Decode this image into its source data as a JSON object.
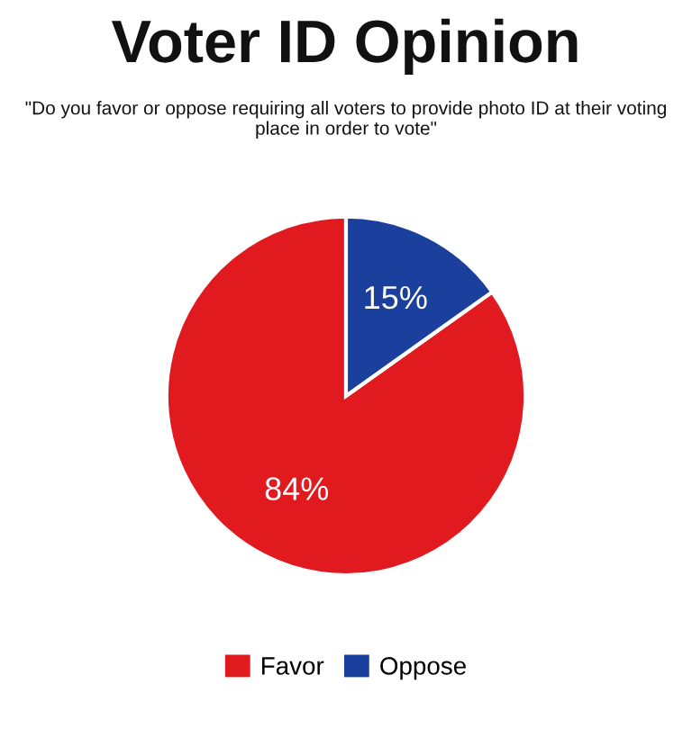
{
  "chart_data": {
    "type": "pie",
    "title": "Voter ID Opinion",
    "subtitle": "\"Do you favor or oppose requiring all voters to provide photo ID at their voting place in order to vote\"",
    "categories": [
      "Favor",
      "Oppose"
    ],
    "values": [
      84,
      15
    ],
    "colors": [
      "#e01a1f",
      "#1b3f9c"
    ],
    "value_labels": [
      "84%",
      "15%"
    ],
    "legend": "bottom"
  }
}
